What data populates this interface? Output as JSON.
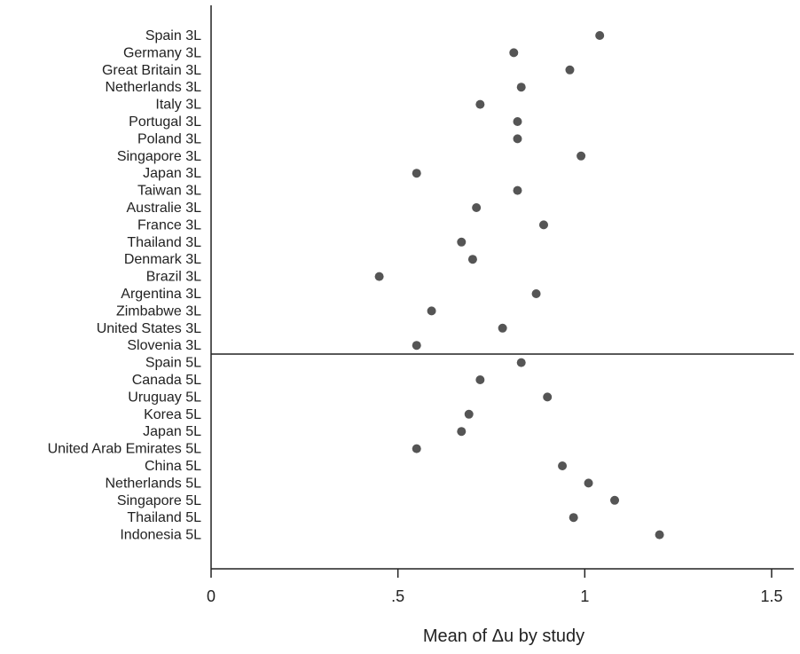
{
  "chart_data": {
    "type": "scatter",
    "title": "",
    "xlabel": "Mean of Δu by study",
    "ylabel": "",
    "xlim": [
      0,
      1.55
    ],
    "x_ticks": [
      0,
      0.5,
      1,
      1.5
    ],
    "x_tick_labels": [
      "0",
      ".5",
      "1",
      "1.5"
    ],
    "grid": false,
    "legend": "none",
    "marker_color": "#555555",
    "groups": [
      {
        "categories": [
          "Spain 3L",
          "Germany 3L",
          "Great Britain 3L",
          "Netherlands 3L",
          "Italy 3L",
          "Portugal 3L",
          "Poland 3L",
          "Singapore 3L",
          "Japan 3L",
          "Taiwan 3L",
          "Australie 3L",
          "France 3L",
          "Thailand 3L",
          "Denmark 3L",
          "Brazil 3L",
          "Argentina 3L",
          "Zimbabwe 3L",
          "United States 3L",
          "Slovenia 3L"
        ],
        "values": [
          1.04,
          0.81,
          0.96,
          0.83,
          0.72,
          0.82,
          0.82,
          0.99,
          0.55,
          0.82,
          0.71,
          0.89,
          0.67,
          0.7,
          0.45,
          0.87,
          0.59,
          0.78,
          0.55
        ]
      },
      {
        "categories": [
          "Spain 5L",
          "Canada 5L",
          "Uruguay 5L",
          "Korea 5L",
          "Japan 5L",
          "United Arab Emirates 5L",
          "China 5L",
          "Netherlands 5L",
          "Singapore 5L",
          "Thailand 5L",
          "Indonesia 5L"
        ],
        "values": [
          0.83,
          0.72,
          0.9,
          0.69,
          0.67,
          0.55,
          0.94,
          1.01,
          1.08,
          0.97,
          1.2
        ]
      }
    ]
  }
}
